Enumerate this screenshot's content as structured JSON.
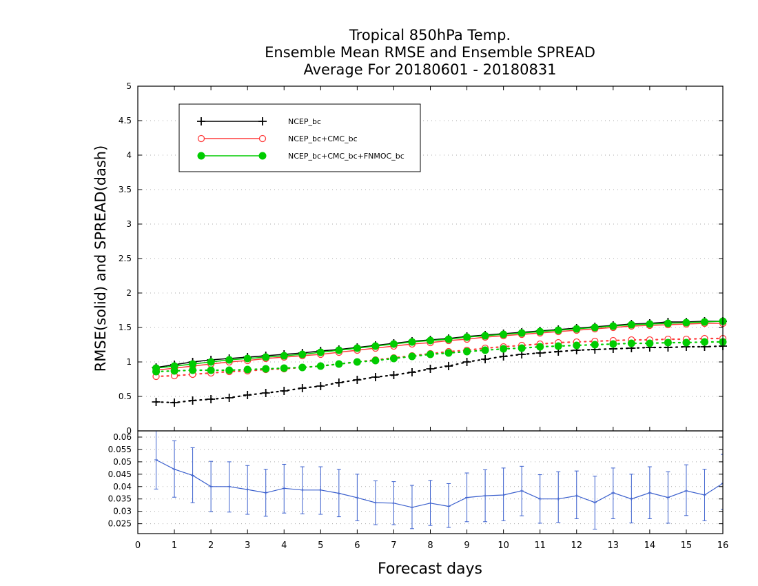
{
  "chart_data": [
    {
      "type": "line",
      "title": [
        "Tropical 850hPa Temp.",
        "Ensemble Mean RMSE and Ensemble SPREAD",
        "Average For 20180601 - 20180831"
      ],
      "ylabel": "RMSE(solid) and SPREAD(dash)",
      "xlim": [
        0,
        16
      ],
      "ylim": [
        0,
        5
      ],
      "yticks": [
        "0",
        "0.5",
        "1",
        "1.5",
        "2",
        "2.5",
        "3",
        "3.5",
        "4",
        "4.5",
        "5"
      ],
      "grid": true,
      "legend": "top-left",
      "x": [
        0.5,
        1,
        1.5,
        2,
        2.5,
        3,
        3.5,
        4,
        4.5,
        5,
        5.5,
        6,
        6.5,
        7,
        7.5,
        8,
        8.5,
        9,
        9.5,
        10,
        10.5,
        11,
        11.5,
        12,
        12.5,
        13,
        13.5,
        14,
        14.5,
        15,
        15.5,
        16
      ],
      "series": [
        {
          "name": "NCEP_bc",
          "color": "#000000",
          "marker": "plus",
          "line": "solid",
          "values": [
            0.92,
            0.96,
            1.0,
            1.03,
            1.05,
            1.07,
            1.09,
            1.11,
            1.13,
            1.16,
            1.18,
            1.21,
            1.24,
            1.27,
            1.3,
            1.32,
            1.34,
            1.37,
            1.39,
            1.41,
            1.43,
            1.45,
            1.47,
            1.49,
            1.51,
            1.53,
            1.55,
            1.56,
            1.58,
            1.58,
            1.59,
            1.59
          ]
        },
        {
          "name": "",
          "color": "#000000",
          "marker": "plus",
          "line": "dotted",
          "values": [
            0.42,
            0.41,
            0.44,
            0.46,
            0.48,
            0.52,
            0.55,
            0.58,
            0.62,
            0.65,
            0.7,
            0.74,
            0.78,
            0.81,
            0.85,
            0.9,
            0.94,
            1.0,
            1.04,
            1.08,
            1.11,
            1.13,
            1.15,
            1.17,
            1.18,
            1.19,
            1.2,
            1.21,
            1.21,
            1.22,
            1.22,
            1.23
          ]
        },
        {
          "name": "NCEP_bc+CMC_bc",
          "color": "#ff3b3b",
          "marker": "circle-open",
          "line": "solid",
          "values": [
            0.88,
            0.91,
            0.94,
            0.97,
            1.0,
            1.02,
            1.05,
            1.07,
            1.09,
            1.11,
            1.14,
            1.17,
            1.2,
            1.23,
            1.26,
            1.28,
            1.31,
            1.33,
            1.36,
            1.38,
            1.4,
            1.42,
            1.44,
            1.46,
            1.48,
            1.5,
            1.52,
            1.53,
            1.54,
            1.55,
            1.56,
            1.56
          ]
        },
        {
          "name": "",
          "color": "#ff3b3b",
          "marker": "circle-open",
          "line": "dotted",
          "values": [
            0.79,
            0.8,
            0.82,
            0.84,
            0.86,
            0.87,
            0.89,
            0.9,
            0.92,
            0.94,
            0.97,
            1.0,
            1.03,
            1.06,
            1.09,
            1.12,
            1.15,
            1.17,
            1.2,
            1.22,
            1.24,
            1.26,
            1.28,
            1.29,
            1.3,
            1.31,
            1.32,
            1.32,
            1.33,
            1.33,
            1.34,
            1.34
          ]
        },
        {
          "name": "NCEP_bc+CMC_bc+FNMOC_bc",
          "color": "#00cc00",
          "marker": "circle-filled",
          "line": "solid",
          "values": [
            0.91,
            0.94,
            0.97,
            1.0,
            1.03,
            1.05,
            1.07,
            1.09,
            1.11,
            1.14,
            1.17,
            1.2,
            1.23,
            1.26,
            1.29,
            1.31,
            1.33,
            1.36,
            1.38,
            1.4,
            1.42,
            1.44,
            1.46,
            1.48,
            1.5,
            1.52,
            1.54,
            1.55,
            1.56,
            1.57,
            1.58,
            1.59
          ]
        },
        {
          "name": "",
          "color": "#00cc00",
          "marker": "circle-filled",
          "line": "dotted",
          "values": [
            0.86,
            0.87,
            0.88,
            0.88,
            0.88,
            0.89,
            0.9,
            0.91,
            0.92,
            0.94,
            0.97,
            1.0,
            1.02,
            1.05,
            1.08,
            1.11,
            1.13,
            1.15,
            1.17,
            1.19,
            1.2,
            1.22,
            1.23,
            1.24,
            1.25,
            1.26,
            1.27,
            1.27,
            1.28,
            1.28,
            1.29,
            1.29
          ]
        }
      ]
    },
    {
      "type": "line",
      "xlabel": "Forecast days",
      "xlim": [
        0,
        16
      ],
      "xticks": [
        "0",
        "1",
        "2",
        "3",
        "4",
        "5",
        "6",
        "7",
        "8",
        "9",
        "10",
        "11",
        "12",
        "13",
        "14",
        "15",
        "16"
      ],
      "ylim": [
        0.021,
        0.0625
      ],
      "yticks": [
        "0.025",
        "0.03",
        "0.035",
        "0.04",
        "0.045",
        "0.05",
        "0.055",
        "0.06"
      ],
      "grid": true,
      "x": [
        0.5,
        1,
        1.5,
        2,
        2.5,
        3,
        3.5,
        4,
        4.5,
        5,
        5.5,
        6,
        6.5,
        7,
        7.5,
        8,
        8.5,
        9,
        9.5,
        10,
        10.5,
        11,
        11.5,
        12,
        12.5,
        13,
        13.5,
        14,
        14.5,
        15,
        15.5,
        16
      ],
      "series": [
        {
          "color": "#3a5fcd",
          "line": "solid",
          "values": [
            0.0508,
            0.047,
            0.0445,
            0.04,
            0.04,
            0.0388,
            0.0375,
            0.0393,
            0.0386,
            0.0386,
            0.0373,
            0.0355,
            0.0335,
            0.0333,
            0.0316,
            0.0333,
            0.032,
            0.0356,
            0.0363,
            0.0366,
            0.0383,
            0.035,
            0.035,
            0.0363,
            0.0336,
            0.0375,
            0.035,
            0.0375,
            0.0356,
            0.0383,
            0.0366,
            0.0413
          ],
          "err_low": [
            0.039,
            0.0357,
            0.0335,
            0.0298,
            0.0297,
            0.0288,
            0.028,
            0.0293,
            0.029,
            0.0288,
            0.0278,
            0.0262,
            0.0246,
            0.0246,
            0.023,
            0.0243,
            0.0235,
            0.0258,
            0.0258,
            0.0262,
            0.0282,
            0.0252,
            0.0255,
            0.027,
            0.0228,
            0.027,
            0.0253,
            0.027,
            0.0252,
            0.0283,
            0.0262,
            0.0308
          ],
          "err_high": [
            0.063,
            0.0585,
            0.0557,
            0.0502,
            0.05,
            0.0485,
            0.047,
            0.049,
            0.048,
            0.048,
            0.047,
            0.045,
            0.0423,
            0.042,
            0.0405,
            0.0425,
            0.0412,
            0.0455,
            0.0468,
            0.0475,
            0.0482,
            0.0448,
            0.046,
            0.0463,
            0.0442,
            0.0475,
            0.045,
            0.048,
            0.046,
            0.0488,
            0.047,
            0.053
          ]
        }
      ]
    }
  ]
}
